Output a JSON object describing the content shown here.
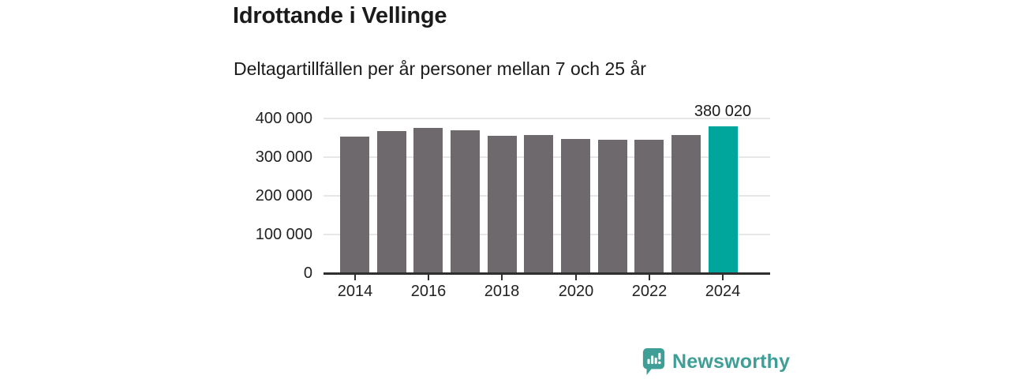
{
  "header": {
    "title": "Idrottande i Vellinge",
    "subtitle": "Deltagartillfällen per år personer mellan 7 och 25 år"
  },
  "footer": {
    "brand": "Newsworthy",
    "brand_color": "#3f9e96"
  },
  "chart_data": {
    "type": "bar",
    "title": "Idrottande i Vellinge",
    "subtitle": "Deltagartillfällen per år personer mellan 7 och 25 år",
    "categories": [
      "2014",
      "2015",
      "2016",
      "2017",
      "2018",
      "2019",
      "2020",
      "2021",
      "2022",
      "2023",
      "2024"
    ],
    "values": [
      354000,
      367000,
      375000,
      369000,
      355000,
      358000,
      347000,
      345000,
      345000,
      358000,
      380020
    ],
    "highlight": {
      "index": 10,
      "category": "2024",
      "value": 380020,
      "label": "380 020"
    },
    "xtick_labels": [
      "2014",
      "2016",
      "2018",
      "2020",
      "2022",
      "2024"
    ],
    "ytick_labels": [
      "0",
      "100 000",
      "200 000",
      "300 000",
      "400 000"
    ],
    "ylim": [
      0,
      400000
    ],
    "grid": true,
    "legend_position": "none",
    "bar_color": "#6d696d",
    "highlight_color": "#00a69b",
    "grid_color": "#e7e7e7",
    "axis_color": "#2f2f2f",
    "text_color": "#1b1b1b"
  }
}
